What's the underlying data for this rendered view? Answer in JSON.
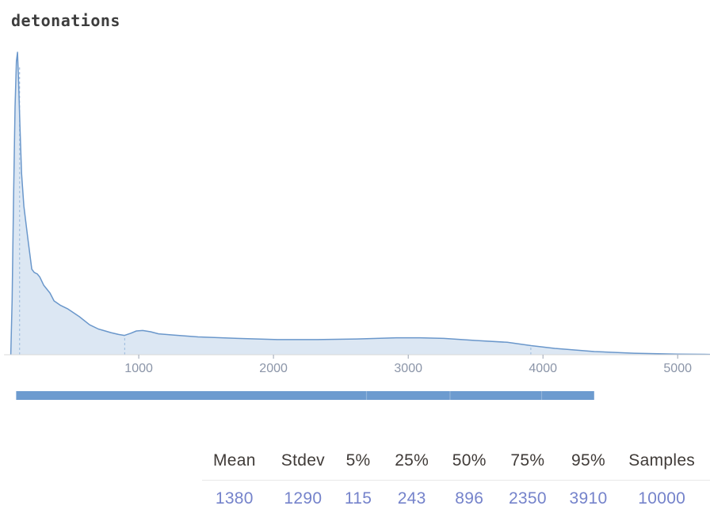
{
  "title": "detonations",
  "chart_data": {
    "type": "area",
    "title": "detonations",
    "xlabel": "",
    "ylabel": "",
    "xlim": [
      0,
      5240
    ],
    "xticks": [
      1000,
      2000,
      3000,
      4000,
      5000
    ],
    "grid": false,
    "legend": "none",
    "points": [
      [
        50,
        0.0
      ],
      [
        60,
        0.18
      ],
      [
        70,
        0.5
      ],
      [
        82,
        0.82
      ],
      [
        92,
        0.97
      ],
      [
        100,
        1.0
      ],
      [
        108,
        0.9
      ],
      [
        118,
        0.754
      ],
      [
        130,
        0.6
      ],
      [
        147,
        0.492
      ],
      [
        176,
        0.387
      ],
      [
        206,
        0.283
      ],
      [
        224,
        0.272
      ],
      [
        247,
        0.267
      ],
      [
        265,
        0.257
      ],
      [
        294,
        0.23
      ],
      [
        341,
        0.204
      ],
      [
        371,
        0.178
      ],
      [
        420,
        0.163
      ],
      [
        471,
        0.152
      ],
      [
        559,
        0.126
      ],
      [
        635,
        0.099
      ],
      [
        700,
        0.085
      ],
      [
        794,
        0.073
      ],
      [
        850,
        0.067
      ],
      [
        894,
        0.064
      ],
      [
        940,
        0.071
      ],
      [
        982,
        0.0785
      ],
      [
        1029,
        0.08
      ],
      [
        1088,
        0.076
      ],
      [
        1147,
        0.069
      ],
      [
        1265,
        0.065
      ],
      [
        1441,
        0.059
      ],
      [
        1735,
        0.054
      ],
      [
        2029,
        0.05
      ],
      [
        2324,
        0.05
      ],
      [
        2618,
        0.052
      ],
      [
        2912,
        0.056
      ],
      [
        3088,
        0.056
      ],
      [
        3265,
        0.054
      ],
      [
        3500,
        0.047
      ],
      [
        3735,
        0.041
      ],
      [
        3912,
        0.03
      ],
      [
        4088,
        0.021
      ],
      [
        4382,
        0.0105
      ],
      [
        4676,
        0.005
      ],
      [
        5000,
        0.002
      ],
      [
        5240,
        0.001
      ]
    ],
    "percentile_markers": [
      {
        "label": "5%",
        "value": 115,
        "height": 0.95
      },
      {
        "label": "50%",
        "value": 896,
        "height": 0.064
      },
      {
        "label": "95%",
        "value": 3910,
        "height": 0.031
      }
    ],
    "samples_bar": {
      "min": 90,
      "max": 4380,
      "gaps": [
        2690,
        3310,
        3990
      ]
    },
    "colors": {
      "line": "#6a97cb",
      "fill": "#dce7f3",
      "marker": "#a3c0e0",
      "axis": "#d9d9d9",
      "tick": "#9aa3b3",
      "tick_label": "#8b95a8",
      "bar": "#6d9bcf",
      "bar_gap": "#93b4da"
    },
    "summary": {
      "mean": 1380,
      "stdev": 1290,
      "p5": 115,
      "p25": 243,
      "p50": 896,
      "p75": 2350,
      "p95": 3910,
      "samples": 10000
    }
  },
  "table": {
    "columns": [
      "Mean",
      "Stdev",
      "5%",
      "25%",
      "50%",
      "75%",
      "95%",
      "Samples"
    ],
    "values": [
      "1380",
      "1290",
      "115",
      "243",
      "896",
      "2350",
      "3910",
      "10000"
    ]
  },
  "theme": {
    "title_color": "#3d3d3d",
    "header_text_color": "#403b38",
    "value_text_color": "#7583cb",
    "rule_color": "#e8e8e8",
    "background": "#ffffff"
  }
}
